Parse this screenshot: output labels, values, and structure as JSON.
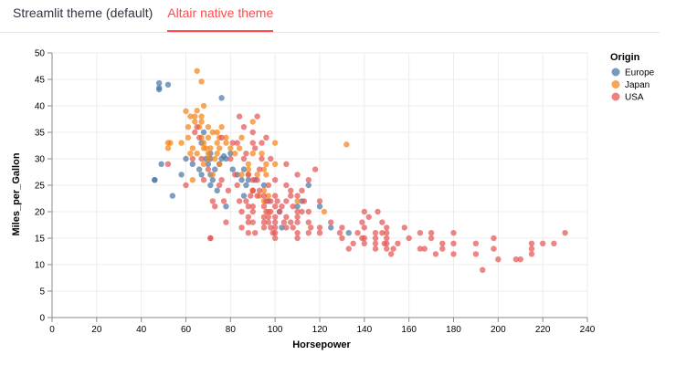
{
  "tabs": [
    {
      "label": "Streamlit theme (default)",
      "active": false
    },
    {
      "label": "Altair native theme",
      "active": true
    }
  ],
  "colors": {
    "active_tab": "#ff4b4b",
    "europe": "#4c78a8",
    "japan": "#f58518",
    "usa": "#e45756"
  },
  "chart_data": {
    "type": "scatter",
    "xlabel": "Horsepower",
    "ylabel": "Miles_per_Gallon",
    "xlim": [
      0,
      240
    ],
    "ylim": [
      0,
      50
    ],
    "xticks": [
      0,
      20,
      40,
      60,
      80,
      100,
      120,
      140,
      160,
      180,
      200,
      220,
      240
    ],
    "yticks": [
      0,
      5,
      10,
      15,
      20,
      25,
      30,
      35,
      40,
      45,
      50
    ],
    "grid": true,
    "legend": {
      "title": "Origin",
      "position": "right",
      "entries": [
        "Europe",
        "Japan",
        "USA"
      ]
    },
    "series": [
      {
        "name": "Europe",
        "color": "#4c78a8",
        "points": [
          [
            46,
            26
          ],
          [
            46,
            26
          ],
          [
            48,
            43.1
          ],
          [
            48,
            43.4
          ],
          [
            48,
            44.3
          ],
          [
            49,
            29
          ],
          [
            52,
            44
          ],
          [
            54,
            23
          ],
          [
            58,
            27
          ],
          [
            60,
            30
          ],
          [
            63,
            29
          ],
          [
            66,
            28
          ],
          [
            67,
            33
          ],
          [
            67,
            27
          ],
          [
            69,
            30
          ],
          [
            70,
            29
          ],
          [
            71,
            27
          ],
          [
            71,
            25
          ],
          [
            71,
            30
          ],
          [
            72,
            26
          ],
          [
            74,
            24
          ],
          [
            75,
            29
          ],
          [
            76,
            30
          ],
          [
            76,
            41.5
          ],
          [
            77,
            30.5
          ],
          [
            78,
            30
          ],
          [
            78,
            21
          ],
          [
            80,
            31
          ],
          [
            81,
            28
          ],
          [
            83,
            27
          ],
          [
            85,
            26
          ],
          [
            86,
            28
          ],
          [
            86,
            23
          ],
          [
            87,
            25
          ],
          [
            88,
            26
          ],
          [
            90,
            24
          ],
          [
            91,
            26
          ],
          [
            95,
            25
          ],
          [
            97,
            22
          ],
          [
            102,
            20
          ],
          [
            103,
            17
          ],
          [
            110,
            21
          ],
          [
            112,
            22
          ],
          [
            115,
            25
          ],
          [
            120,
            21
          ],
          [
            125,
            17
          ],
          [
            133,
            16
          ],
          [
            68,
            35
          ],
          [
            71,
            31
          ],
          [
            73,
            28
          ]
        ]
      },
      {
        "name": "Japan",
        "color": "#f58518",
        "points": [
          [
            52,
            32
          ],
          [
            52,
            33
          ],
          [
            53,
            33
          ],
          [
            60,
            39
          ],
          [
            61,
            36
          ],
          [
            61,
            34
          ],
          [
            62,
            38
          ],
          [
            63,
            32
          ],
          [
            64,
            37
          ],
          [
            65,
            46.6
          ],
          [
            65,
            39.1
          ],
          [
            65,
            31
          ],
          [
            66,
            36
          ],
          [
            67,
            44.6
          ],
          [
            67,
            38
          ],
          [
            67,
            34
          ],
          [
            68,
            33
          ],
          [
            68,
            32
          ],
          [
            68,
            29
          ],
          [
            68,
            40
          ],
          [
            69,
            32
          ],
          [
            70,
            31
          ],
          [
            70,
            30
          ],
          [
            70,
            36
          ],
          [
            71,
            32
          ],
          [
            72,
            35
          ],
          [
            74,
            31
          ],
          [
            74,
            33
          ],
          [
            75,
            32
          ],
          [
            75,
            34
          ],
          [
            76,
            36
          ],
          [
            78,
            34
          ],
          [
            78,
            33
          ],
          [
            80,
            32
          ],
          [
            84,
            32
          ],
          [
            85,
            27
          ],
          [
            88,
            29
          ],
          [
            88,
            28
          ],
          [
            88,
            27
          ],
          [
            90,
            24
          ],
          [
            93,
            23
          ],
          [
            94,
            31
          ],
          [
            95,
            24
          ],
          [
            95,
            22
          ],
          [
            96,
            27
          ],
          [
            97,
            23
          ],
          [
            100,
            29
          ],
          [
            100,
            33
          ],
          [
            110,
            22
          ],
          [
            122,
            20
          ],
          [
            132,
            32.7
          ],
          [
            97,
            20
          ],
          [
            72,
            27
          ],
          [
            75,
            29
          ],
          [
            82,
            31
          ],
          [
            92,
            27
          ],
          [
            95,
            28
          ],
          [
            96,
            29
          ],
          [
            64,
            38
          ],
          [
            67,
            37
          ],
          [
            70,
            34
          ],
          [
            73,
            30
          ],
          [
            62,
            31
          ],
          [
            74,
            35
          ],
          [
            85,
            34
          ],
          [
            90,
            31
          ],
          [
            58,
            33
          ],
          [
            63,
            26
          ],
          [
            90,
            37
          ]
        ]
      },
      {
        "name": "USA",
        "color": "#e45756",
        "points": [
          [
            52,
            29
          ],
          [
            60,
            25
          ],
          [
            63,
            30
          ],
          [
            64,
            35
          ],
          [
            65,
            36
          ],
          [
            66,
            34
          ],
          [
            67,
            30
          ],
          [
            68,
            26
          ],
          [
            70,
            28
          ],
          [
            71,
            15
          ],
          [
            71,
            15
          ],
          [
            72,
            22
          ],
          [
            73,
            21
          ],
          [
            75,
            25
          ],
          [
            76,
            26
          ],
          [
            77,
            22
          ],
          [
            78,
            18
          ],
          [
            79,
            24
          ],
          [
            80,
            30
          ],
          [
            81,
            33
          ],
          [
            82,
            27
          ],
          [
            83,
            25
          ],
          [
            84,
            38
          ],
          [
            85,
            20
          ],
          [
            85,
            17
          ],
          [
            86,
            30
          ],
          [
            86,
            36
          ],
          [
            87,
            22
          ],
          [
            88,
            27
          ],
          [
            88,
            21
          ],
          [
            88,
            19
          ],
          [
            88,
            16
          ],
          [
            90,
            33
          ],
          [
            90,
            35
          ],
          [
            90,
            26
          ],
          [
            90,
            24
          ],
          [
            90,
            21
          ],
          [
            90,
            18
          ],
          [
            90,
            20
          ],
          [
            91,
            32
          ],
          [
            91,
            16
          ],
          [
            92,
            38
          ],
          [
            92,
            26
          ],
          [
            93,
            28
          ],
          [
            94,
            30
          ],
          [
            95,
            23
          ],
          [
            95,
            21
          ],
          [
            95,
            19
          ],
          [
            95,
            18
          ],
          [
            95,
            17
          ],
          [
            96,
            34
          ],
          [
            96,
            20
          ],
          [
            97,
            25
          ],
          [
            97,
            19
          ],
          [
            97,
            18
          ],
          [
            98,
            30
          ],
          [
            98,
            22
          ],
          [
            98,
            20
          ],
          [
            98,
            17
          ],
          [
            99,
            16
          ],
          [
            100,
            26
          ],
          [
            100,
            23
          ],
          [
            100,
            21
          ],
          [
            100,
            19
          ],
          [
            100,
            18
          ],
          [
            100,
            17
          ],
          [
            100,
            16
          ],
          [
            100,
            15
          ],
          [
            102,
            20
          ],
          [
            103,
            21
          ],
          [
            104,
            18
          ],
          [
            105,
            29
          ],
          [
            105,
            25
          ],
          [
            105,
            22
          ],
          [
            105,
            19
          ],
          [
            105,
            17
          ],
          [
            107,
            24
          ],
          [
            107,
            18
          ],
          [
            108,
            21
          ],
          [
            108,
            17
          ],
          [
            110,
            27
          ],
          [
            110,
            23
          ],
          [
            110,
            20
          ],
          [
            110,
            19
          ],
          [
            110,
            18
          ],
          [
            110,
            16
          ],
          [
            110,
            15
          ],
          [
            112,
            24
          ],
          [
            113,
            22
          ],
          [
            115,
            26
          ],
          [
            115,
            18
          ],
          [
            115,
            16
          ],
          [
            116,
            17
          ],
          [
            118,
            28
          ],
          [
            120,
            17
          ],
          [
            120,
            16
          ],
          [
            120,
            22
          ],
          [
            125,
            18
          ],
          [
            129,
            16
          ],
          [
            130,
            17
          ],
          [
            133,
            13
          ],
          [
            135,
            14
          ],
          [
            137,
            16
          ],
          [
            139,
            18
          ],
          [
            140,
            20
          ],
          [
            140,
            17
          ],
          [
            140,
            15
          ],
          [
            140,
            14
          ],
          [
            142,
            19
          ],
          [
            145,
            13
          ],
          [
            145,
            16
          ],
          [
            145,
            15
          ],
          [
            145,
            14
          ],
          [
            146,
            20
          ],
          [
            148,
            16
          ],
          [
            148,
            18
          ],
          [
            149,
            14
          ],
          [
            150,
            17
          ],
          [
            150,
            16
          ],
          [
            150,
            15
          ],
          [
            150,
            14
          ],
          [
            150,
            13
          ],
          [
            152,
            12
          ],
          [
            153,
            13
          ],
          [
            155,
            14
          ],
          [
            158,
            17
          ],
          [
            160,
            15
          ],
          [
            165,
            13
          ],
          [
            165,
            16
          ],
          [
            167,
            13
          ],
          [
            170,
            16
          ],
          [
            170,
            15
          ],
          [
            172,
            12
          ],
          [
            175,
            14
          ],
          [
            175,
            13
          ],
          [
            180,
            14
          ],
          [
            180,
            16
          ],
          [
            180,
            12
          ],
          [
            190,
            14
          ],
          [
            190,
            12
          ],
          [
            193,
            9
          ],
          [
            198,
            13
          ],
          [
            198,
            15
          ],
          [
            200,
            11
          ],
          [
            208,
            11
          ],
          [
            210,
            11
          ],
          [
            215,
            14
          ],
          [
            215,
            13
          ],
          [
            215,
            12
          ],
          [
            220,
            14
          ],
          [
            225,
            14
          ],
          [
            230,
            16
          ],
          [
            84,
            22
          ],
          [
            87,
            31
          ],
          [
            88,
            18
          ],
          [
            92,
            23
          ],
          [
            93,
            24
          ],
          [
            96,
            22
          ],
          [
            101,
            22
          ],
          [
            107,
            23
          ],
          [
            112,
            20
          ],
          [
            115,
            20
          ],
          [
            130,
            15
          ],
          [
            139,
            15
          ],
          [
            83,
            33
          ],
          [
            94,
            33
          ],
          [
            89,
            23
          ],
          [
            76,
            34
          ]
        ]
      }
    ]
  }
}
